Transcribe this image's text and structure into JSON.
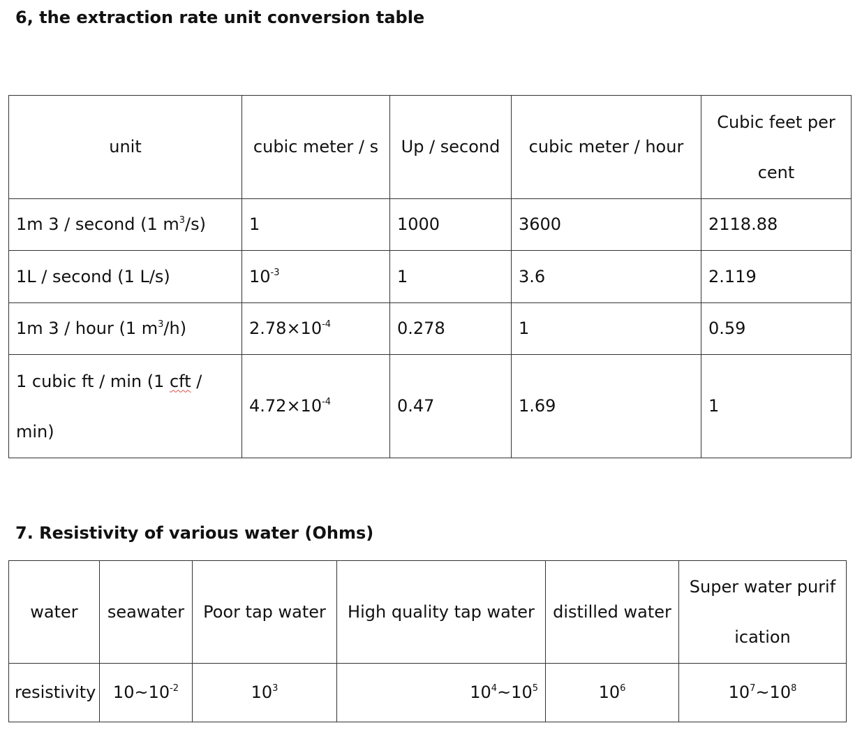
{
  "section6": {
    "heading": "6, the extraction rate unit conversion table",
    "headers": {
      "unit": "unit",
      "m3s": "cubic meter / s",
      "ls": "Up / second",
      "m3h": "cubic meter / hour",
      "cfm_line1": "Cubic feet per",
      "cfm_line2": "cent"
    },
    "rows": [
      {
        "unit_pre": "1m 3 / second (1 m",
        "unit_sup": "3",
        "unit_post": "/s)",
        "m3s": "1",
        "m3s_sup": "",
        "ls": "1000",
        "m3h": "3600",
        "cfm": "2118.88"
      },
      {
        "unit_pre": "1L / second (1 L/s)",
        "unit_sup": "",
        "unit_post": "",
        "m3s": "10",
        "m3s_sup": "-3",
        "ls": "1",
        "m3h": "3.6",
        "cfm": "2.119"
      },
      {
        "unit_pre": "1m 3 / hour (1 m",
        "unit_sup": "3",
        "unit_post": "/h)",
        "m3s": "2.78×10",
        "m3s_sup": "-4",
        "ls": "0.278",
        "m3h": "1",
        "cfm": "0.59"
      },
      {
        "unit_line1_pre": "1 cubic ft / min (1 ",
        "unit_line1_squig": "cft",
        "unit_line1_post": " /",
        "unit_line2": "min)",
        "m3s": "4.72×10",
        "m3s_sup": "-4",
        "ls": "0.47",
        "m3h": "1.69",
        "cfm": "1"
      }
    ]
  },
  "section7": {
    "heading": "7. Resistivity of various water (Ohms)",
    "headers": {
      "water": "water",
      "seawater": "seawater",
      "poor": "Poor tap water",
      "high": "High quality tap water",
      "distilled": "distilled water",
      "super_line1": "Super water purif",
      "super_line2": "ication"
    },
    "row": {
      "label": "resistivity",
      "seawater_base": "10~10",
      "seawater_sup": "-2",
      "poor_base": "10",
      "poor_sup": "3",
      "high_a": "10",
      "high_a_sup": "4",
      "high_b": "~10",
      "high_b_sup": "5",
      "distilled_base": "10",
      "distilled_sup": "6",
      "super_a": "10",
      "super_a_sup": "7",
      "super_b": "~10",
      "super_b_sup": "8"
    }
  }
}
